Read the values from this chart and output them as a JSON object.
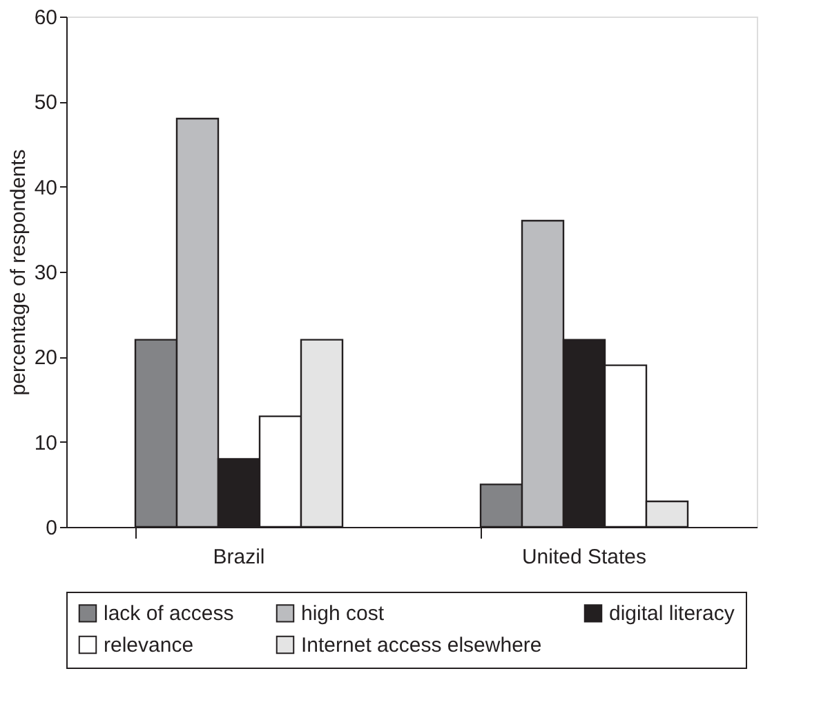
{
  "chart_data": {
    "type": "bar",
    "ylabel": "percentage of respondents",
    "categories": [
      "Brazil",
      "United States"
    ],
    "series": [
      {
        "name": "lack of access",
        "color": "#838487",
        "values": [
          22,
          5
        ]
      },
      {
        "name": "high cost",
        "color": "#bbbcbf",
        "values": [
          48,
          36
        ]
      },
      {
        "name": "digital literacy",
        "color": "#231f20",
        "values": [
          8,
          22
        ]
      },
      {
        "name": "relevance",
        "color": "#ffffff",
        "values": [
          13,
          19
        ]
      },
      {
        "name": "Internet access elsewhere",
        "color": "#e4e4e4",
        "values": [
          22,
          3
        ]
      }
    ],
    "ylim": [
      0,
      60
    ],
    "yticks": [
      0,
      10,
      20,
      30,
      40,
      50,
      60
    ],
    "grid": false,
    "legend": "bottom"
  }
}
